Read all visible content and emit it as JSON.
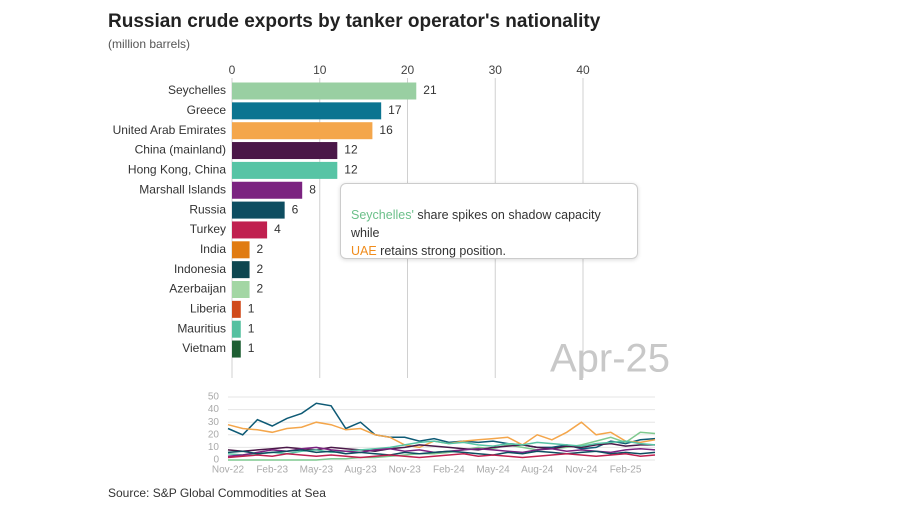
{
  "title": "Russian crude exports by tanker operator's nationality",
  "subtitle": "(million barrels)",
  "source": "Source: S&P Global Commodities at Sea",
  "annotation": [
    [
      {
        "text": "Seychelles'",
        "color": "#6cc08a"
      },
      {
        "text": " share spikes on shadow capacity while",
        "color": "#333333"
      }
    ],
    [
      {
        "text": "UAE",
        "color": "#f08c1c"
      },
      {
        "text": " retains strong position.",
        "color": "#333333"
      }
    ]
  ],
  "chart_data": [
    {
      "type": "hbar",
      "date_label": "Apr-25",
      "categories": [
        "Seychelles",
        "Greece",
        "United Arab Emirates",
        "China (mainland)",
        "Hong Kong, China",
        "Marshall Islands",
        "Russia",
        "Turkey",
        "India",
        "Indonesia",
        "Azerbaijan",
        "Liberia",
        "Mauritius",
        "Vietnam"
      ],
      "values": [
        21,
        17,
        16,
        12,
        12,
        8,
        6,
        4,
        2,
        2,
        2,
        1,
        1,
        1
      ],
      "colors": [
        "#99cfa2",
        "#0b7490",
        "#f4a64b",
        "#4a1748",
        "#57c4a5",
        "#7b2380",
        "#0e4d60",
        "#c0204f",
        "#e07b12",
        "#0d4650",
        "#a3d6a4",
        "#d04a1a",
        "#55c0a0",
        "#1e5e32"
      ],
      "xlim": [
        0,
        40
      ],
      "xticks": [
        0,
        10,
        20,
        30,
        40
      ],
      "grid": true
    },
    {
      "type": "line",
      "categories": [
        "Nov-22",
        null,
        null,
        "Feb-23",
        null,
        null,
        "May-23",
        null,
        null,
        "Aug-23",
        null,
        null,
        "Nov-23",
        null,
        null,
        "Feb-24",
        null,
        null,
        "May-24",
        null,
        null,
        "Aug-24",
        null,
        null,
        "Nov-24",
        null,
        null,
        "Feb-25",
        null,
        null
      ],
      "ylim": [
        0,
        50
      ],
      "yticks": [
        0,
        10,
        20,
        30,
        40,
        50
      ],
      "grid": true,
      "series": [
        {
          "name": "Greece",
          "color": "#0e5a75",
          "values": [
            25,
            20,
            32,
            27,
            33,
            37,
            45,
            43,
            25,
            30,
            20,
            18,
            18,
            15,
            17,
            14,
            15,
            14,
            15,
            13,
            12,
            10,
            10,
            12,
            9,
            10,
            15,
            13,
            16,
            17
          ]
        },
        {
          "name": "United Arab Emirates",
          "color": "#f4a64b",
          "values": [
            28,
            25,
            24,
            22,
            25,
            26,
            30,
            28,
            24,
            25,
            20,
            18,
            12,
            10,
            15,
            13,
            15,
            16,
            17,
            18,
            12,
            20,
            16,
            22,
            30,
            20,
            22,
            15,
            14,
            16
          ]
        },
        {
          "name": "Seychelles",
          "color": "#7fc98f",
          "values": [
            0,
            0,
            0,
            0,
            0,
            0,
            0,
            1,
            1,
            2,
            2,
            3,
            4,
            5,
            5,
            6,
            8,
            10,
            9,
            12,
            10,
            8,
            9,
            10,
            12,
            15,
            18,
            14,
            22,
            21
          ]
        },
        {
          "name": "China (mainland)",
          "color": "#4a1748",
          "values": [
            8,
            7,
            8,
            9,
            10,
            9,
            8,
            10,
            9,
            8,
            7,
            9,
            10,
            12,
            11,
            10,
            9,
            8,
            10,
            11,
            12,
            10,
            9,
            11,
            10,
            12,
            13,
            11,
            12,
            12
          ]
        },
        {
          "name": "Hong Kong, China",
          "color": "#57c4a5",
          "values": [
            5,
            4,
            5,
            6,
            5,
            7,
            8,
            6,
            7,
            8,
            9,
            10,
            12,
            14,
            15,
            13,
            14,
            12,
            11,
            13,
            12,
            14,
            13,
            12,
            11,
            13,
            14,
            15,
            13,
            12
          ]
        },
        {
          "name": "Marshall Islands",
          "color": "#7b2380",
          "values": [
            3,
            4,
            6,
            8,
            7,
            9,
            10,
            8,
            7,
            6,
            8,
            9,
            7,
            8,
            6,
            7,
            8,
            9,
            8,
            7,
            6,
            8,
            9,
            7,
            8,
            7,
            6,
            8,
            9,
            8
          ]
        },
        {
          "name": "Russia",
          "color": "#0e4d60",
          "values": [
            6,
            7,
            5,
            6,
            7,
            8,
            6,
            7,
            5,
            6,
            5,
            4,
            6,
            5,
            6,
            7,
            6,
            5,
            4,
            6,
            5,
            7,
            6,
            5,
            6,
            7,
            5,
            6,
            5,
            6
          ]
        },
        {
          "name": "Turkey",
          "color": "#c0204f",
          "values": [
            2,
            3,
            4,
            3,
            5,
            4,
            3,
            4,
            3,
            2,
            3,
            4,
            3,
            2,
            3,
            4,
            5,
            3,
            4,
            3,
            2,
            3,
            4,
            5,
            4,
            3,
            4,
            5,
            3,
            4
          ]
        }
      ]
    }
  ]
}
